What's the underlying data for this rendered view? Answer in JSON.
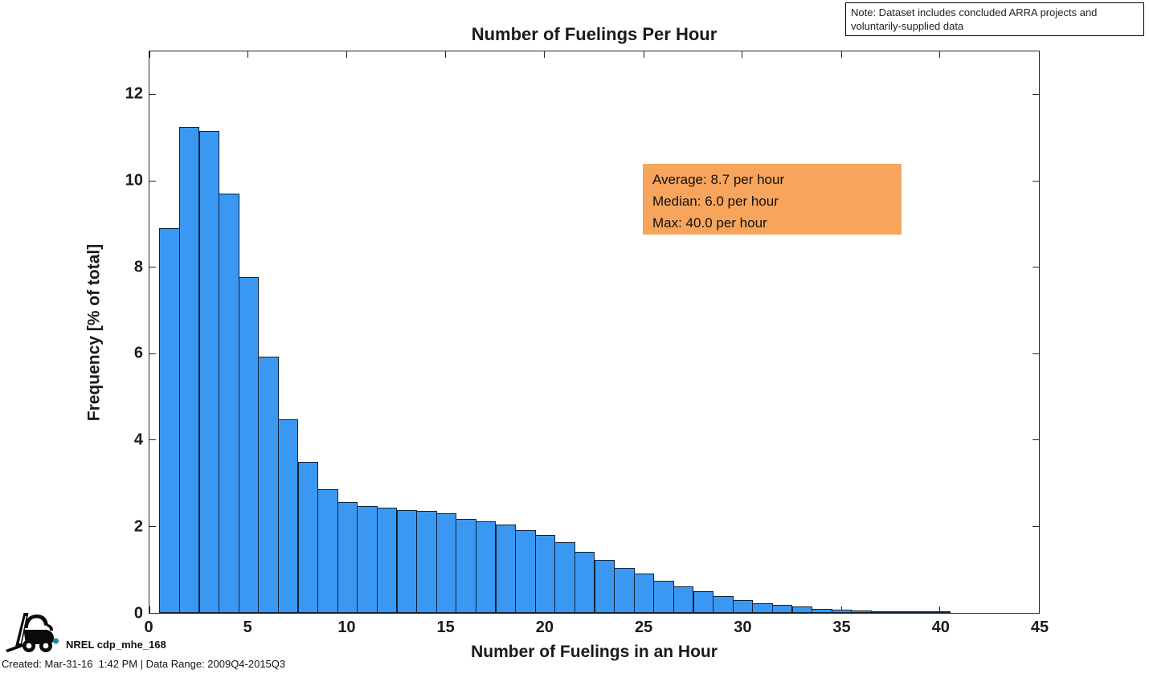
{
  "note_box": {
    "text": "Note: Dataset includes concluded ARRA projects and voluntarily-supplied data"
  },
  "annotation": {
    "bg_color": "#F7A55C",
    "lines": [
      "Average: 8.7 per hour",
      "Median: 6.0 per hour",
      "Max: 40.0 per hour"
    ]
  },
  "chart_data": {
    "type": "bar",
    "title": "Number of Fuelings Per Hour",
    "xlabel": "Number of Fuelings in an Hour",
    "ylabel": "Frequency [% of total]",
    "xlim": [
      0,
      45
    ],
    "ylim": [
      0,
      13
    ],
    "xticks": [
      0,
      5,
      10,
      15,
      20,
      25,
      30,
      35,
      40,
      45
    ],
    "yticks": [
      0,
      2,
      4,
      6,
      8,
      10,
      12
    ],
    "grid": false,
    "legend": "none",
    "bin_width": 1,
    "bar_color": "#3B98F2",
    "bar_edge_color": "#0e2236",
    "x": [
      1,
      2,
      3,
      4,
      5,
      6,
      7,
      8,
      9,
      10,
      11,
      12,
      13,
      14,
      15,
      16,
      17,
      18,
      19,
      20,
      21,
      22,
      23,
      24,
      25,
      26,
      27,
      28,
      29,
      30,
      31,
      32,
      33,
      34,
      35,
      36,
      37,
      38,
      39,
      40
    ],
    "values": [
      8.9,
      11.25,
      11.15,
      9.7,
      7.78,
      5.93,
      4.48,
      3.5,
      2.86,
      2.56,
      2.47,
      2.43,
      2.39,
      2.36,
      2.3,
      2.18,
      2.12,
      2.04,
      1.91,
      1.81,
      1.64,
      1.41,
      1.23,
      1.05,
      0.91,
      0.74,
      0.61,
      0.5,
      0.4,
      0.3,
      0.22,
      0.18,
      0.14,
      0.1,
      0.08,
      0.05,
      0.04,
      0.03,
      0.02,
      0.015
    ],
    "stats": {
      "average_per_hour": 8.7,
      "median_per_hour": 6.0,
      "max_per_hour": 40.0
    }
  },
  "footer": {
    "logo_icon": "forklift-icon",
    "logo_dot_color": "#1C8CA8",
    "label": "NREL cdp_mhe_168",
    "created": "Created: Mar-31-16  1:42 PM | Data Range: 2009Q4-2015Q3"
  }
}
